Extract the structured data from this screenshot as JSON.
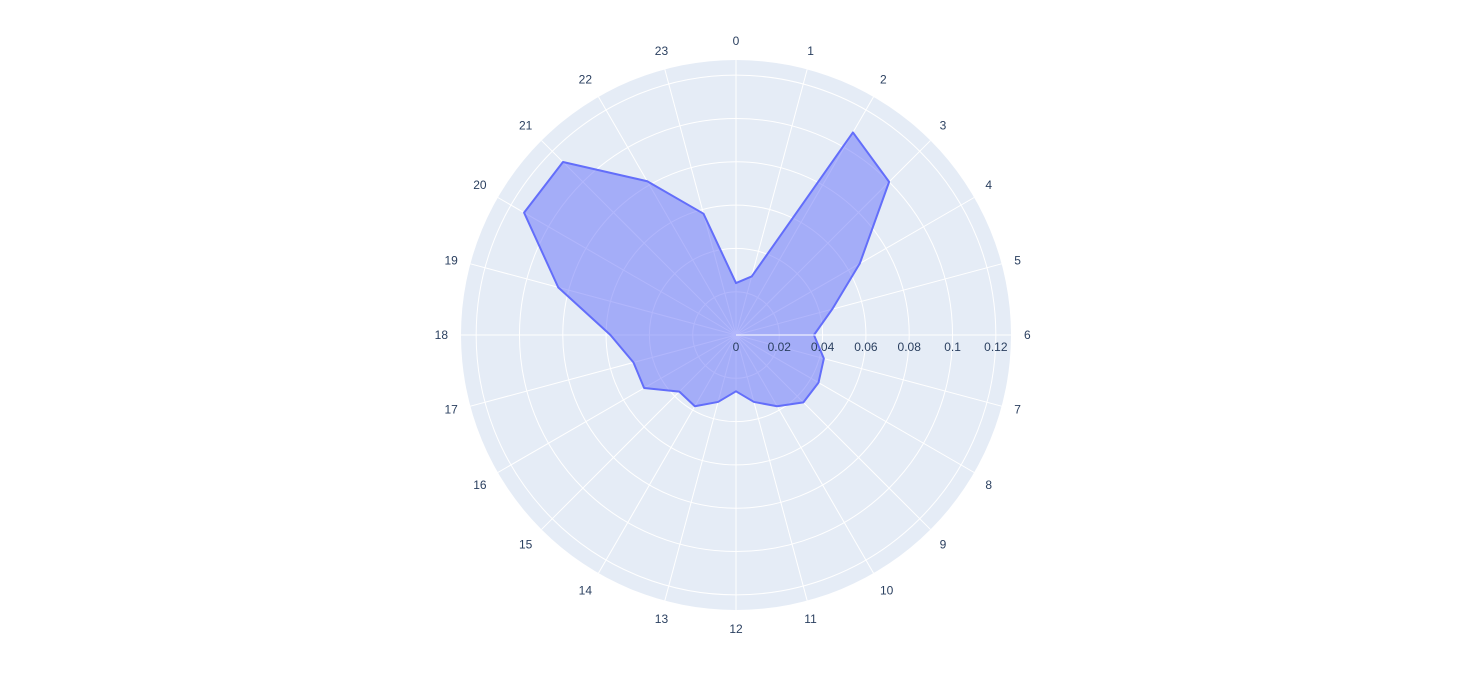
{
  "chart_data": {
    "type": "area",
    "subtype": "polar",
    "categories": [
      "0",
      "1",
      "2",
      "3",
      "4",
      "5",
      "6",
      "7",
      "8",
      "9",
      "10",
      "11",
      "12",
      "13",
      "14",
      "15",
      "16",
      "17",
      "18",
      "19",
      "20",
      "21",
      "22",
      "23"
    ],
    "series": [
      {
        "values": [
          0.024,
          0.028,
          0.108,
          0.1,
          0.066,
          0.046,
          0.036,
          0.042,
          0.044,
          0.044,
          0.038,
          0.032,
          0.026,
          0.032,
          0.038,
          0.037,
          0.049,
          0.049,
          0.058,
          0.085,
          0.113,
          0.113,
          0.082,
          0.058
        ],
        "line_color": "#636efa",
        "fill_color": "#636efa",
        "fill_opacity": 0.5
      }
    ],
    "radial_axis": {
      "range": [
        0,
        0.127
      ],
      "ticks": [
        0,
        0.02,
        0.04,
        0.06,
        0.08,
        0.1,
        0.12
      ],
      "tick_labels": [
        "0",
        "0.02",
        "0.04",
        "0.06",
        "0.08",
        "0.1",
        "0.12"
      ]
    },
    "angular_axis": {
      "direction": "clockwise",
      "rotation": "top"
    },
    "grid": true,
    "legend": "none",
    "colors": {
      "plot_background": "#e5ecf6",
      "grid": "#ffffff",
      "text": "#2a3f5f"
    }
  }
}
